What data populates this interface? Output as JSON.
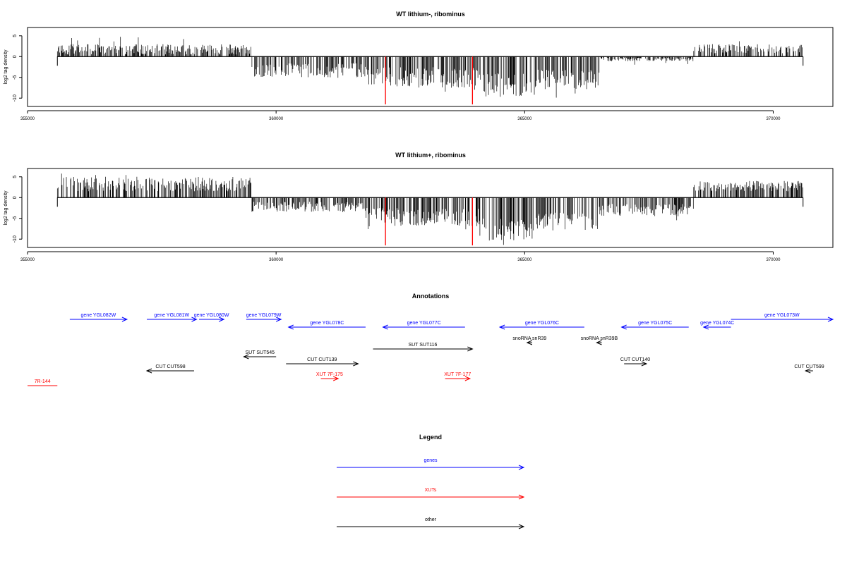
{
  "chart_data": [
    {
      "type": "bar",
      "title": "WT lithium-, ribominus",
      "xlabel": "",
      "ylabel": "log2 tag density",
      "xlim": [
        355000,
        371200
      ],
      "ylim": [
        -12,
        7
      ],
      "xticks": [
        355000,
        360000,
        365000,
        370000
      ],
      "yticks": [
        -10,
        -5,
        0,
        5
      ],
      "grid": false,
      "segments": [
        {
          "x0": 355600,
          "x1": 359500,
          "base": 0.5,
          "amp": 2.5,
          "sign": 1,
          "spike": 5.0
        },
        {
          "x0": 359500,
          "x1": 361800,
          "base": 1.5,
          "amp": 3.5,
          "sign": -1,
          "spike": 5.5
        },
        {
          "x0": 361800,
          "x1": 364100,
          "base": 2.5,
          "amp": 5.0,
          "sign": -1,
          "spike": 8.5
        },
        {
          "x0": 364100,
          "x1": 365200,
          "base": 4.0,
          "amp": 5.5,
          "sign": -1,
          "spike": 10.5
        },
        {
          "x0": 365200,
          "x1": 366500,
          "base": 3.0,
          "amp": 5.0,
          "sign": -1,
          "spike": 10.0
        },
        {
          "x0": 366500,
          "x1": 368400,
          "base": 0.3,
          "amp": 0.8,
          "sign": -1,
          "spike": 2.0
        },
        {
          "x0": 368400,
          "x1": 370600,
          "base": 0.8,
          "amp": 2.2,
          "sign": 1,
          "spike": 3.8
        }
      ],
      "markers": [
        {
          "x": 362200,
          "y": -11.5,
          "color": "#ff0000"
        },
        {
          "x": 363950,
          "y": -11.5,
          "color": "#ff0000"
        }
      ]
    },
    {
      "type": "bar",
      "title": "WT lithium+, ribominus",
      "xlabel": "",
      "ylabel": "log2 tag density",
      "xlim": [
        355000,
        371200
      ],
      "ylim": [
        -12,
        7
      ],
      "xticks": [
        355000,
        360000,
        365000,
        370000
      ],
      "yticks": [
        -10,
        -5,
        0,
        5
      ],
      "grid": false,
      "segments": [
        {
          "x0": 355600,
          "x1": 359500,
          "base": 1.5,
          "amp": 3.5,
          "sign": 1,
          "spike": 6.0
        },
        {
          "x0": 359500,
          "x1": 361800,
          "base": 1.0,
          "amp": 2.5,
          "sign": -1,
          "spike": 3.5
        },
        {
          "x0": 361800,
          "x1": 364100,
          "base": 2.5,
          "amp": 4.5,
          "sign": -1,
          "spike": 8.0
        },
        {
          "x0": 364100,
          "x1": 365200,
          "base": 5.0,
          "amp": 5.5,
          "sign": -1,
          "spike": 11.5
        },
        {
          "x0": 365200,
          "x1": 366500,
          "base": 3.5,
          "amp": 4.5,
          "sign": -1,
          "spike": 8.5
        },
        {
          "x0": 366500,
          "x1": 368400,
          "base": 1.5,
          "amp": 3.0,
          "sign": -1,
          "spike": 5.5
        },
        {
          "x0": 368400,
          "x1": 370600,
          "base": 1.5,
          "amp": 2.5,
          "sign": 1,
          "spike": 3.8
        }
      ],
      "markers": [
        {
          "x": 362200,
          "y": -11.5,
          "color": "#ff0000"
        },
        {
          "x": 363950,
          "y": -11.5,
          "color": "#ff0000"
        }
      ]
    }
  ],
  "annotations": {
    "title": "Annotations",
    "items": [
      {
        "label": "gene YGL082W",
        "color": "#0000ff",
        "x0": 355850,
        "x1": 357000,
        "dir": "right",
        "row": 0
      },
      {
        "label": "gene YGL081W",
        "color": "#0000ff",
        "x0": 357400,
        "x1": 358400,
        "dir": "right",
        "row": 0
      },
      {
        "label": "gene YGL080W",
        "color": "#0000ff",
        "x0": 358450,
        "x1": 358950,
        "dir": "right",
        "row": 0
      },
      {
        "label": "gene YGL079W",
        "color": "#0000ff",
        "x0": 359400,
        "x1": 360100,
        "dir": "right",
        "row": 0
      },
      {
        "label": "gene YGL078C",
        "color": "#0000ff",
        "x0": 360250,
        "x1": 361800,
        "dir": "left",
        "row": 1
      },
      {
        "label": "gene YGL077C",
        "color": "#0000ff",
        "x0": 362150,
        "x1": 363800,
        "dir": "left",
        "row": 1
      },
      {
        "label": "gene YGL076C",
        "color": "#0000ff",
        "x0": 364500,
        "x1": 366200,
        "dir": "left",
        "row": 1
      },
      {
        "label": "gene YGL075C",
        "color": "#0000ff",
        "x0": 366950,
        "x1": 368300,
        "dir": "left",
        "row": 1
      },
      {
        "label": "gene YGL074C",
        "color": "#0000ff",
        "x0": 368600,
        "x1": 369150,
        "dir": "left",
        "row": 1
      },
      {
        "label": "gene YGL073W",
        "color": "#0000ff",
        "x0": 369150,
        "x1": 371200,
        "dir": "right",
        "row": 0
      },
      {
        "label": "snoRNA snR39",
        "color": "#000000",
        "x0": 365050,
        "x1": 365150,
        "dir": "left",
        "row": 2
      },
      {
        "label": "snoRNA snR39B",
        "color": "#000000",
        "x0": 366450,
        "x1": 366550,
        "dir": "left",
        "row": 2
      },
      {
        "label": "SUT SUT116",
        "color": "#000000",
        "x0": 361950,
        "x1": 363950,
        "dir": "right",
        "row": 3
      },
      {
        "label": "SUT SUT545",
        "color": "#000000",
        "x0": 359350,
        "x1": 360000,
        "dir": "left",
        "row": 4
      },
      {
        "label": "CUT CUT139",
        "color": "#000000",
        "x0": 360200,
        "x1": 361650,
        "dir": "right",
        "row": 5
      },
      {
        "label": "CUT CUT140",
        "color": "#000000",
        "x0": 367000,
        "x1": 367450,
        "dir": "right",
        "row": 5
      },
      {
        "label": "CUT CUT598",
        "color": "#000000",
        "x0": 357400,
        "x1": 358350,
        "dir": "left",
        "row": 6
      },
      {
        "label": "CUT CUT599",
        "color": "#000000",
        "x0": 370650,
        "x1": 370800,
        "dir": "left",
        "row": 6
      },
      {
        "label": "XUT 7F-175",
        "color": "#ff0000",
        "x0": 360900,
        "x1": 361250,
        "dir": "right",
        "row": 7
      },
      {
        "label": "XUT 7F-177",
        "color": "#ff0000",
        "x0": 363400,
        "x1": 363900,
        "dir": "right",
        "row": 7
      },
      {
        "label": "7R-144",
        "color": "#ff0000",
        "x0": 355000,
        "x1": 355600,
        "dir": "none",
        "row": 8
      }
    ]
  },
  "legend": {
    "title": "Legend",
    "items": [
      {
        "label": "genes",
        "color": "#0000ff"
      },
      {
        "label": "XUTs",
        "color": "#ff0000"
      },
      {
        "label": "other",
        "color": "#000000"
      }
    ]
  }
}
